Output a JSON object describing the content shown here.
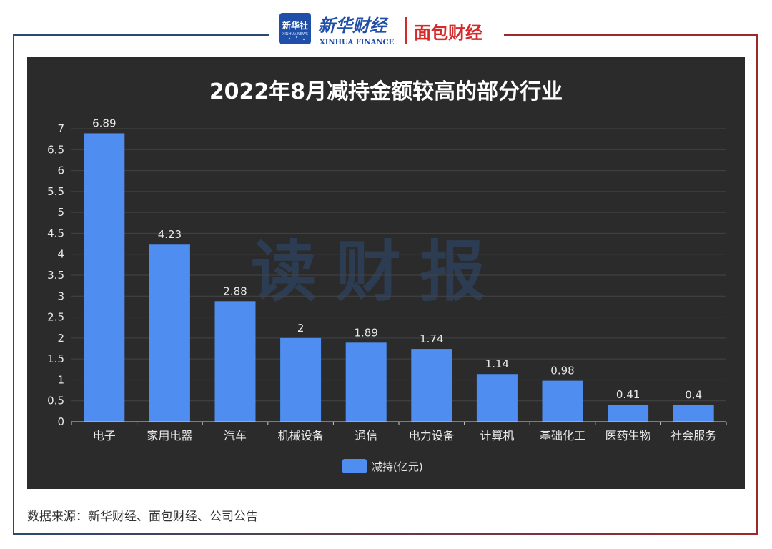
{
  "header": {
    "logo1_badge": "新华社",
    "logo1_badge_sub": "XINHUA NEWS",
    "logo1_name": "新华财经",
    "logo1_sub": "XINHUA FINANCE",
    "logo2_name": "面包财经"
  },
  "watermark": "读财报",
  "source_note": "数据来源：新华财经、面包财经、公司公告",
  "colors": {
    "panel_bg": "#2b2b2b",
    "bar": "#4f8ef0",
    "text_light": "#e8e8e8",
    "frame_blue": "#2b4a6e",
    "frame_red": "#9b2a2a",
    "logo_blue": "#1f4fa8",
    "logo_red": "#d42a2a"
  },
  "chart_data": {
    "type": "bar",
    "title": "2022年8月减持金额较高的部分行业",
    "categories": [
      "电子",
      "家用电器",
      "汽车",
      "机械设备",
      "通信",
      "电力设备",
      "计算机",
      "基础化工",
      "医药生物",
      "社会服务"
    ],
    "series": [
      {
        "name": "减持(亿元)",
        "values": [
          6.89,
          4.23,
          2.88,
          2,
          1.89,
          1.74,
          1.14,
          0.98,
          0.41,
          0.4
        ]
      }
    ],
    "data_labels": [
      "6.89",
      "4.23",
      "2.88",
      "2",
      "1.89",
      "1.74",
      "1.14",
      "0.98",
      "0.41",
      "0.4"
    ],
    "yticks": [
      "0",
      "0.5",
      "1",
      "1.5",
      "2",
      "2.5",
      "3",
      "3.5",
      "4",
      "4.5",
      "5",
      "5.5",
      "6",
      "6.5",
      "7"
    ],
    "ylim": [
      0,
      7
    ],
    "xlabel": "",
    "ylabel": "",
    "grid": true,
    "legend_position": "bottom-center"
  }
}
